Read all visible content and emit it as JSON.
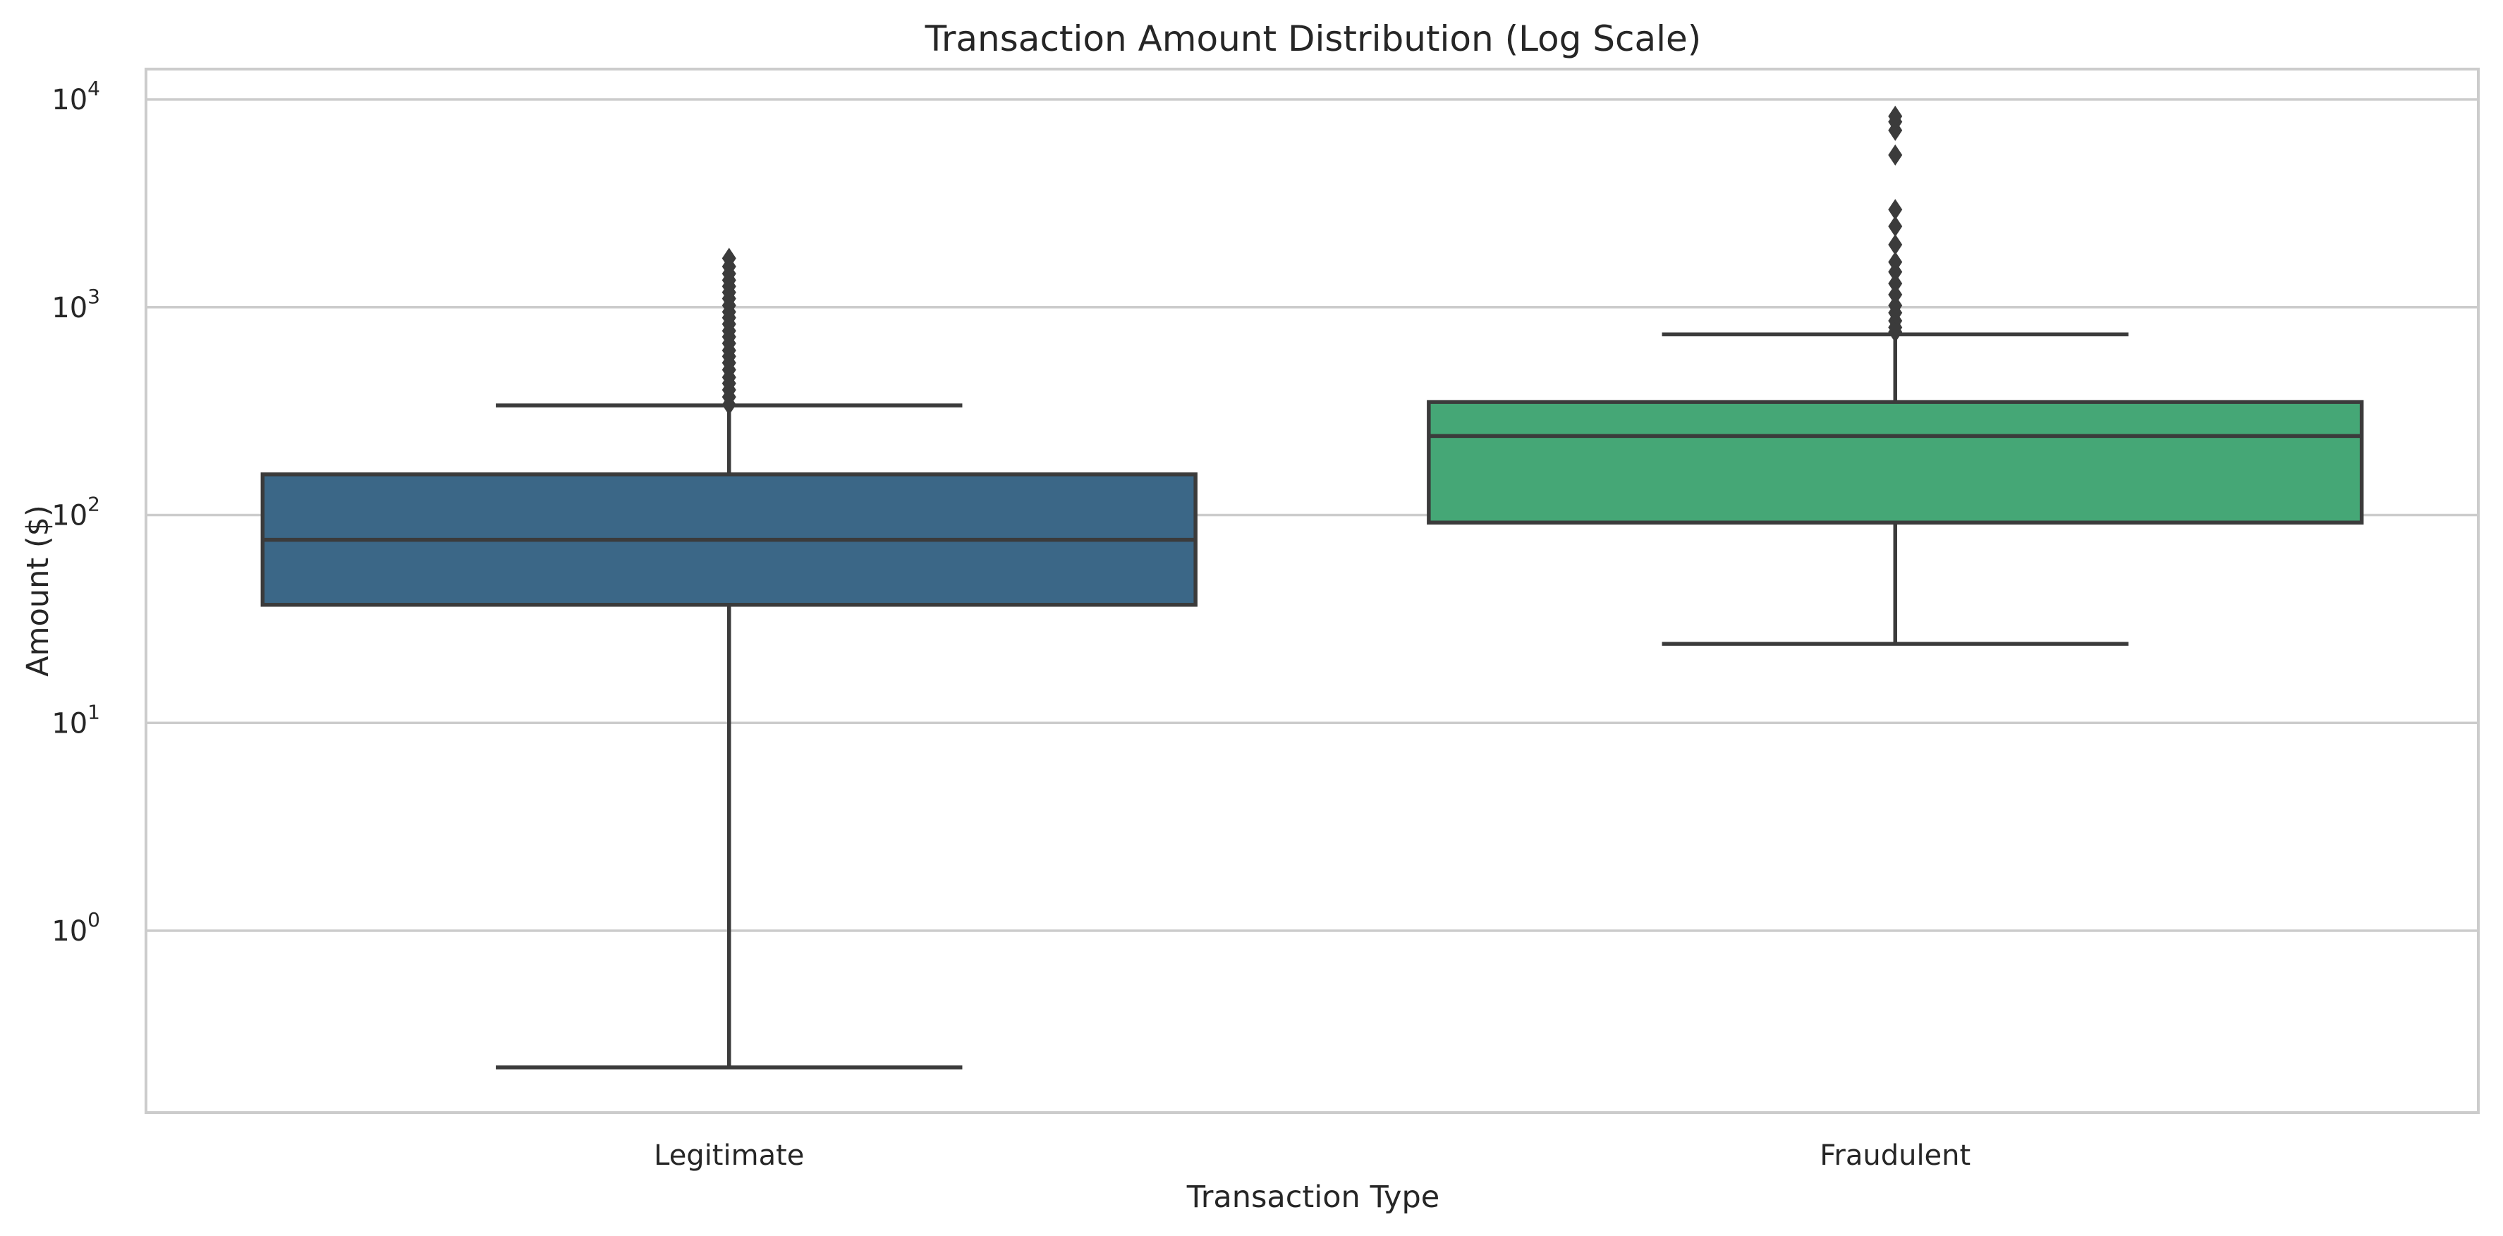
{
  "chart_data": {
    "type": "box",
    "title": "Transaction Amount Distribution (Log Scale)",
    "xlabel": "Transaction Type",
    "ylabel": "Amount ($)",
    "y_scale": "log",
    "ylim": [
      0.13,
      13500
    ],
    "y_ticks": [
      {
        "value": 1,
        "base": "10",
        "exp": "0"
      },
      {
        "value": 10,
        "base": "10",
        "exp": "1"
      },
      {
        "value": 100,
        "base": "10",
        "exp": "2"
      },
      {
        "value": 1000,
        "base": "10",
        "exp": "3"
      },
      {
        "value": 10000,
        "base": "10",
        "exp": "4"
      }
    ],
    "grid": "horizontal",
    "categories": [
      "Legitimate",
      "Fraudulent"
    ],
    "boxes": [
      {
        "name": "Legitimate",
        "color": "#3b6787",
        "whisker_low": 0.22,
        "q1": 37,
        "median": 76,
        "q3": 157,
        "whisker_high": 337,
        "fliers": [
          340,
          370,
          400,
          430,
          460,
          500,
          540,
          580,
          620,
          670,
          720,
          770,
          830,
          890,
          950,
          1020,
          1100,
          1180,
          1260,
          1350,
          1450,
          1570,
          1720
        ]
      },
      {
        "name": "Fraudulent",
        "color": "#45a776",
        "whisker_low": 24,
        "q1": 92,
        "median": 240,
        "q3": 350,
        "whisker_high": 740,
        "fliers": [
          760,
          800,
          860,
          940,
          1020,
          1150,
          1300,
          1480,
          1650,
          2000,
          2450,
          2950,
          5400,
          7100,
          7800,
          8300
        ]
      }
    ]
  }
}
